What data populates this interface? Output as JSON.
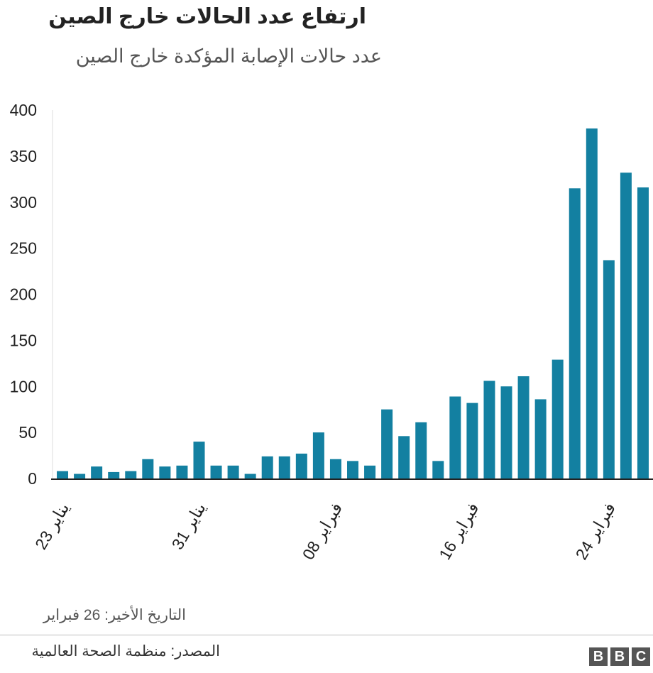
{
  "header": {
    "title": "ارتفاع عدد الحالات خارج الصين",
    "subtitle": "عدد حالات الإصابة المؤكدة خارج الصين"
  },
  "footer": {
    "note": "التاريخ الأخير: 26 فبراير",
    "source": "المصدر: منظمة الصحة العالمية",
    "logo_letters": [
      "B",
      "B",
      "C"
    ]
  },
  "colors": {
    "bar": "#1380A1",
    "axis": "#222222",
    "grid": "#dddddd"
  },
  "chart_data": {
    "type": "bar",
    "title": "ارتفاع عدد الحالات خارج الصين",
    "subtitle": "عدد حالات الإصابة المؤكدة خارج الصين",
    "xlabel": "",
    "ylabel": "",
    "ylim": [
      0,
      400
    ],
    "yticks": [
      0,
      50,
      100,
      150,
      200,
      250,
      300,
      350,
      400
    ],
    "grid": false,
    "categories": [
      "23 يناير",
      "24 يناير",
      "25 يناير",
      "26 يناير",
      "27 يناير",
      "28 يناير",
      "29 يناير",
      "30 يناير",
      "31 يناير",
      "1 فبراير",
      "2 فبراير",
      "3 فبراير",
      "4 فبراير",
      "5 فبراير",
      "6 فبراير",
      "7 فبراير",
      "8 فبراير",
      "9 فبراير",
      "10 فبراير",
      "11 فبراير",
      "12 فبراير",
      "13 فبراير",
      "14 فبراير",
      "15 فبراير",
      "16 فبراير",
      "17 فبراير",
      "18 فبراير",
      "19 فبراير",
      "20 فبراير",
      "21 فبراير",
      "22 فبراير",
      "23 فبراير",
      "24 فبراير",
      "25 فبراير",
      "26 فبراير"
    ],
    "values": [
      8,
      5,
      13,
      7,
      8,
      21,
      13,
      14,
      40,
      14,
      14,
      5,
      24,
      24,
      27,
      50,
      21,
      19,
      14,
      75,
      46,
      61,
      19,
      89,
      82,
      106,
      100,
      111,
      86,
      129,
      315,
      380,
      237,
      332,
      316
    ],
    "x_ticks": [
      {
        "index": 0,
        "label": "23 يناير"
      },
      {
        "index": 8,
        "label": "31 يناير"
      },
      {
        "index": 16,
        "label": "08 فبراير"
      },
      {
        "index": 24,
        "label": "16 فبراير"
      },
      {
        "index": 32,
        "label": "24 فبراير"
      }
    ]
  }
}
